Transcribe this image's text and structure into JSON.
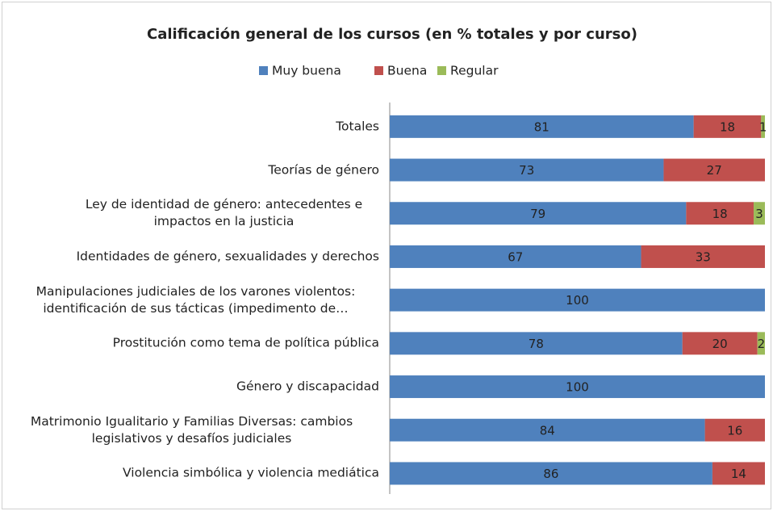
{
  "chart_data": {
    "type": "stacked-bar-horizontal",
    "title": "Calificación general de los cursos (en % totales y por curso)",
    "categories": [
      "Totales",
      "Teorías de género",
      "Ley de identidad de género: antecedentes e impactos en la justicia",
      "Identidades de género, sexualidades y derechos",
      "Manipulaciones judiciales de los varones violentos: identificación de sus tácticas (impedimento de…",
      "Prostitución como tema de política pública",
      "Género y discapacidad",
      "Matrimonio Igualitario y Familias Diversas: cambios legislativos y desafíos judiciales",
      "Violencia simbólica y violencia mediática"
    ],
    "series": [
      {
        "name": "Muy buena",
        "color": "#4f81bd",
        "values": [
          81,
          73,
          79,
          67,
          100,
          78,
          100,
          84,
          86
        ]
      },
      {
        "name": "Buena",
        "color": "#c0504d",
        "values": [
          18,
          27,
          18,
          33,
          null,
          20,
          null,
          16,
          14
        ]
      },
      {
        "name": "Regular",
        "color": "#9bbb59",
        "values": [
          1,
          null,
          3,
          null,
          null,
          2,
          null,
          null,
          null
        ]
      }
    ],
    "xlim": [
      0,
      100
    ],
    "legend": "top"
  }
}
